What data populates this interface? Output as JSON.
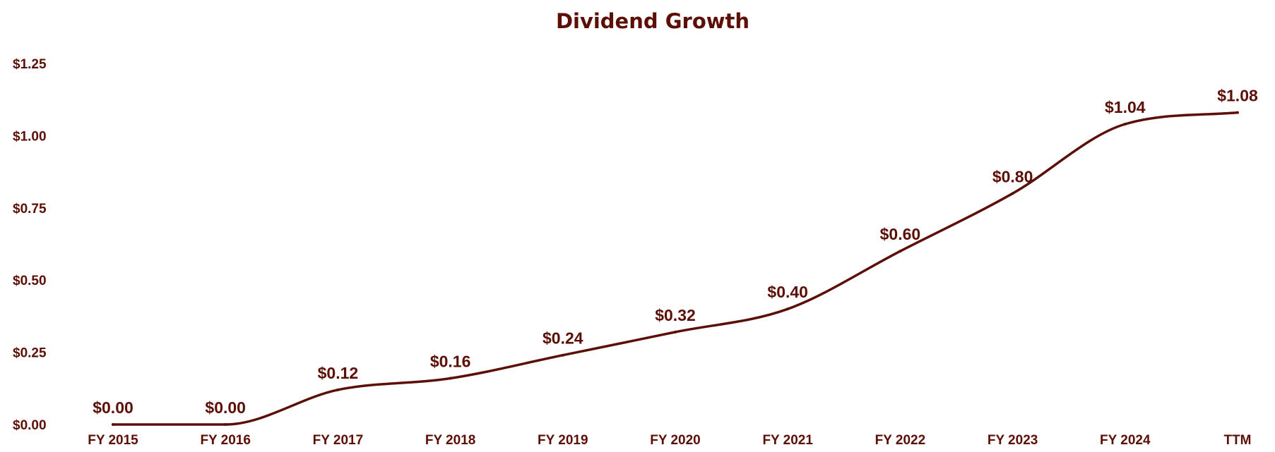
{
  "chart_data": {
    "type": "line",
    "title": "Dividend Growth",
    "xlabel": "",
    "ylabel": "",
    "categories": [
      "FY 2015",
      "FY 2016",
      "FY 2017",
      "FY 2018",
      "FY 2019",
      "FY 2020",
      "FY 2021",
      "FY 2022",
      "FY 2023",
      "FY 2024",
      "TTM"
    ],
    "series": [
      {
        "name": "Dividend",
        "values": [
          0.0,
          0.0,
          0.12,
          0.16,
          0.24,
          0.32,
          0.4,
          0.6,
          0.8,
          1.04,
          1.08
        ],
        "data_labels": [
          "$0.00",
          "$0.00",
          "$0.12",
          "$0.16",
          "$0.24",
          "$0.32",
          "$0.40",
          "$0.60",
          "$0.80",
          "$1.04",
          "$1.08"
        ]
      }
    ],
    "yticks": [
      0,
      0.25,
      0.5,
      0.75,
      1.0,
      1.25
    ],
    "ytick_labels": [
      "$0.00",
      "$0.25",
      "$0.50",
      "$0.75",
      "$1.00",
      "$1.25"
    ],
    "ylim": [
      0,
      1.25
    ],
    "grid": false,
    "legend": "none",
    "colors": {
      "line": "#5c0f06",
      "text": "#5c0f06"
    }
  }
}
